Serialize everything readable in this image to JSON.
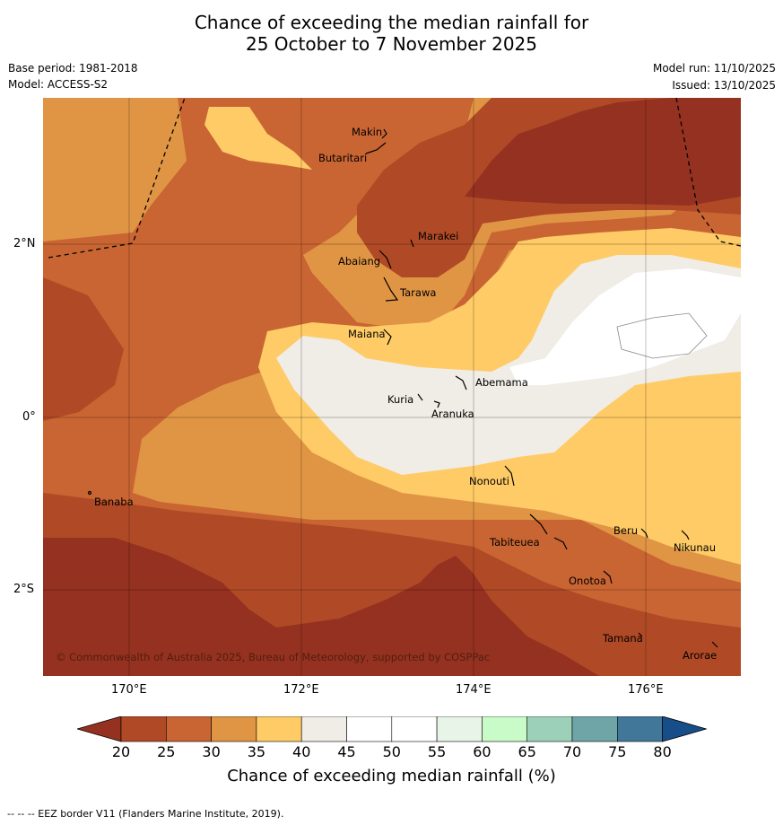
{
  "title_line1": "Chance of exceeding the median rainfall for",
  "title_line2": "25 October to 7 November 2025",
  "base_period": "Base period: 1981-2018",
  "model": "Model: ACCESS-S2",
  "model_run": "Model run: 11/10/2025",
  "issued": "Issued: 13/10/2025",
  "lat_labels": [
    "2°N",
    "0°",
    "2°S"
  ],
  "lon_labels": [
    "170°E",
    "172°E",
    "174°E",
    "176°E"
  ],
  "places": [
    "Makin",
    "Butaritari",
    "Marakei",
    "Abaiang",
    "Tarawa",
    "Maiana",
    "Abemama",
    "Kuria",
    "Aranuka",
    "Nonouti",
    "Banaba",
    "Tabiteuea",
    "Beru",
    "Nikunau",
    "Onotoa",
    "Tamana",
    "Arorae"
  ],
  "copyright": "© Commonwealth of Australia 2025, Bureau of Meteorology, supported by COSPPac",
  "colorbar": {
    "ticks": [
      "20",
      "25",
      "30",
      "35",
      "40",
      "45",
      "50",
      "55",
      "60",
      "65",
      "70",
      "75",
      "80"
    ],
    "colors": [
      "#953120",
      "#b04a26",
      "#c96533",
      "#e09545",
      "#fecb66",
      "#f0ece6",
      "#ffffff",
      "#ffffff",
      "#e9f4e8",
      "#c8fbc8",
      "#9dd0b8",
      "#70a5a8",
      "#41789a",
      "#174d88"
    ],
    "title": "Chance of exceeding median rainfall (%)"
  },
  "footer": "--  --  -- EEZ border V11 (Flanders Marine Institute, 2019)."
}
